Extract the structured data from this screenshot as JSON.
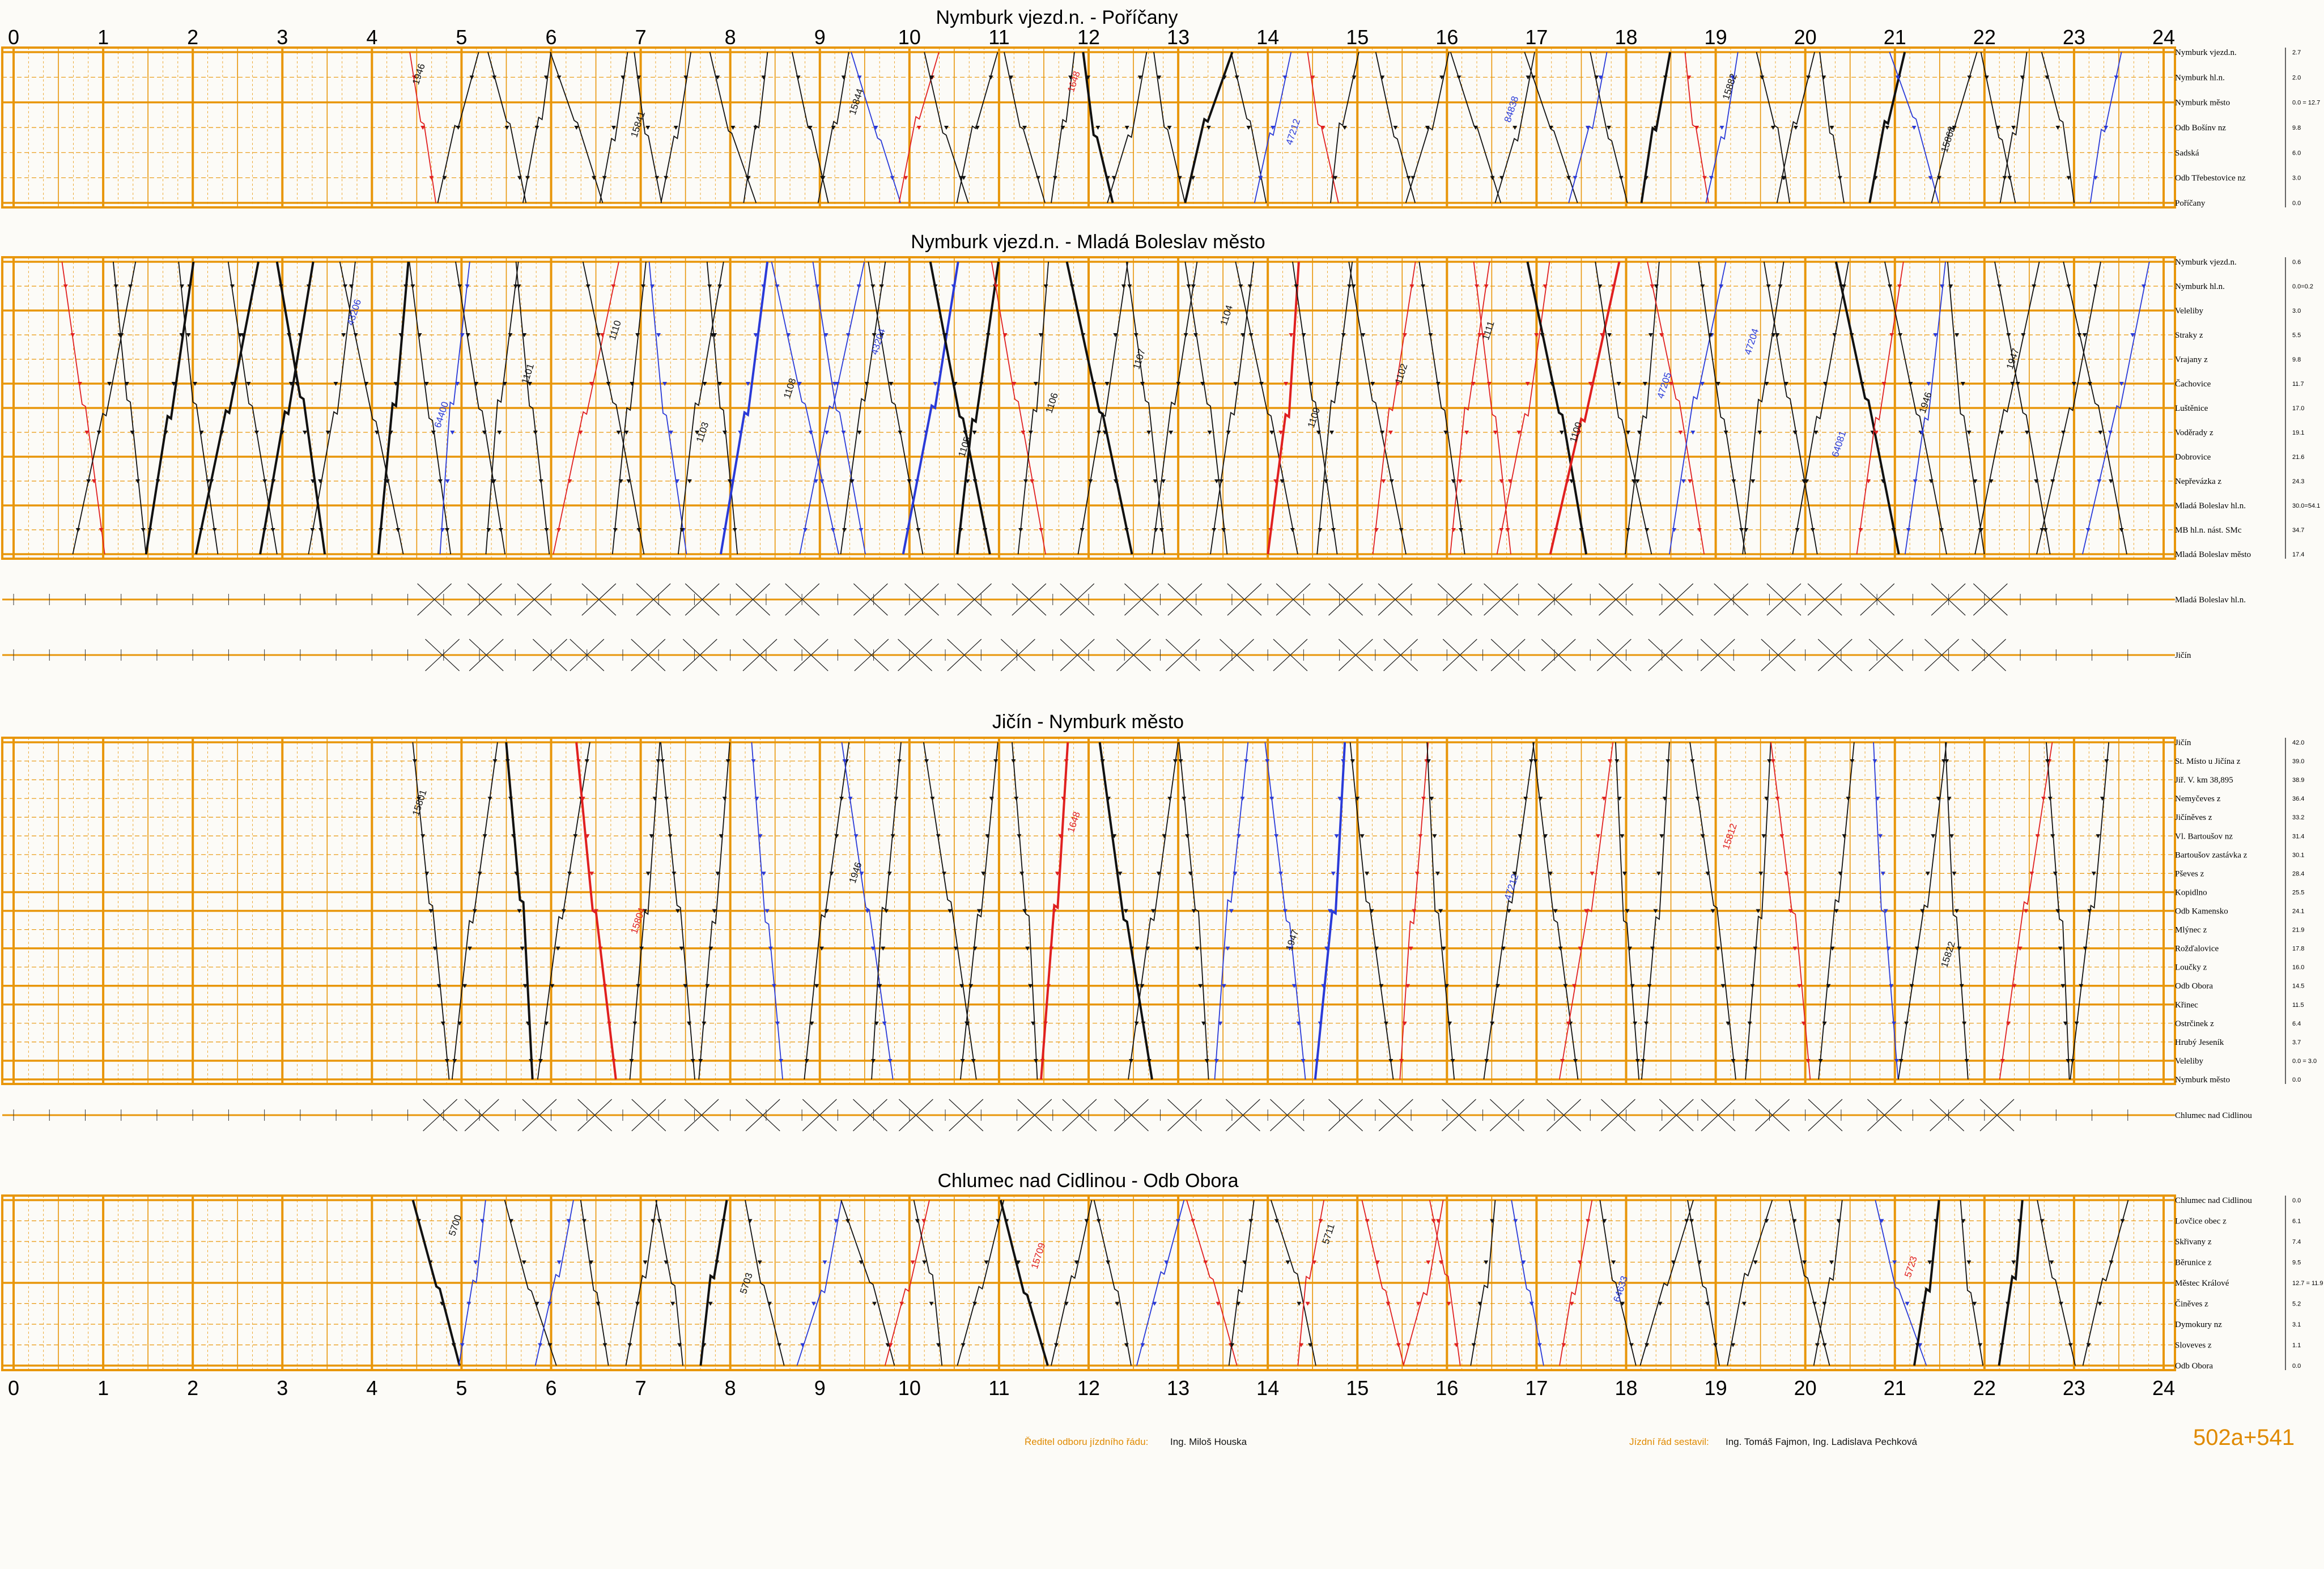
{
  "hours": [
    "0",
    "1",
    "2",
    "3",
    "4",
    "5",
    "6",
    "7",
    "8",
    "9",
    "10",
    "11",
    "12",
    "13",
    "14",
    "15",
    "16",
    "17",
    "18",
    "19",
    "20",
    "21",
    "22",
    "23",
    "24"
  ],
  "colors": {
    "grid": "#e8960a",
    "regional": "#111111",
    "fast": "#e02020",
    "freight": "#2a3ad8",
    "label": "#e08a00"
  },
  "sections": [
    {
      "id": "s1",
      "title": "Nymburk vjezd.n. - Poříčany",
      "stations": [
        {
          "name": "Nymburk vjezd.n.",
          "km": "2.7",
          "major": true
        },
        {
          "name": "Nymburk hl.n.",
          "km": "2.0",
          "major": false
        },
        {
          "name": "Nymburk město",
          "km": "0.0 = 12.7",
          "major": true
        },
        {
          "name": "Odb Bošínv nz",
          "km": "9.8",
          "major": false
        },
        {
          "name": "Sadská",
          "km": "6.0",
          "major": false
        },
        {
          "name": "Odb Třebestovice nz",
          "km": "3.0",
          "major": false
        },
        {
          "name": "Poříčany",
          "km": "0.0",
          "major": true
        }
      ],
      "trains": [
        {
          "num": "1946",
          "kind": "regional"
        },
        {
          "num": "15841",
          "kind": "regional"
        },
        {
          "num": "15844",
          "kind": "regional"
        },
        {
          "num": "1648",
          "kind": "fast"
        },
        {
          "num": "47212",
          "kind": "freight"
        },
        {
          "num": "84838",
          "kind": "freight"
        },
        {
          "num": "15882",
          "kind": "regional"
        },
        {
          "num": "15868",
          "kind": "regional"
        }
      ]
    },
    {
      "id": "s2",
      "title": "Nymburk vjezd.n. - Mladá Boleslav město",
      "stations": [
        {
          "name": "Nymburk vjezd.n.",
          "km": "0.6",
          "major": true
        },
        {
          "name": "Nymburk hl.n.",
          "km": "0.0=0.2",
          "major": false
        },
        {
          "name": "Veleliby",
          "km": "3.0",
          "major": true
        },
        {
          "name": "Straky z",
          "km": "5.5",
          "major": false
        },
        {
          "name": "Vrajany z",
          "km": "9.8",
          "major": false
        },
        {
          "name": "Čachovice",
          "km": "11.7",
          "major": true
        },
        {
          "name": "Luštěnice",
          "km": "17.0",
          "major": true
        },
        {
          "name": "Voděrady z",
          "km": "19.1",
          "major": false
        },
        {
          "name": "Dobrovice",
          "km": "21.6",
          "major": true
        },
        {
          "name": "Nepřevázka z",
          "km": "24.3",
          "major": false
        },
        {
          "name": "Mladá Boleslav hl.n.",
          "km": "30.0=54.1",
          "major": true
        },
        {
          "name": "MB hl.n. nást. SMc",
          "km": "34.7",
          "major": false
        },
        {
          "name": "Mladá Boleslav město",
          "km": "17.4",
          "major": true
        }
      ],
      "trains": [
        {
          "num": "43206",
          "kind": "freight"
        },
        {
          "num": "64400",
          "kind": "freight"
        },
        {
          "num": "1101",
          "kind": "regional"
        },
        {
          "num": "1110",
          "kind": "regional"
        },
        {
          "num": "1103",
          "kind": "regional"
        },
        {
          "num": "1108",
          "kind": "regional"
        },
        {
          "num": "43204",
          "kind": "freight"
        },
        {
          "num": "1105",
          "kind": "regional"
        },
        {
          "num": "1106",
          "kind": "regional"
        },
        {
          "num": "1107",
          "kind": "regional"
        },
        {
          "num": "1104",
          "kind": "regional"
        },
        {
          "num": "1109",
          "kind": "regional"
        },
        {
          "num": "1102",
          "kind": "regional"
        },
        {
          "num": "1111",
          "kind": "regional"
        },
        {
          "num": "1100",
          "kind": "regional"
        },
        {
          "num": "47205",
          "kind": "freight"
        },
        {
          "num": "47204",
          "kind": "freight"
        },
        {
          "num": "64081",
          "kind": "freight"
        },
        {
          "num": "1946",
          "kind": "regional"
        },
        {
          "num": "1947",
          "kind": "regional"
        }
      ],
      "shunting": [
        "Mladá Boleslav hl.n.",
        "Jičín"
      ]
    },
    {
      "id": "s3",
      "title": "Jičín - Nymburk město",
      "stations": [
        {
          "name": "Jičín",
          "km": "42.0",
          "major": true
        },
        {
          "name": "St. Místo u Jičína z",
          "km": "39.0",
          "major": false
        },
        {
          "name": "Jiř. V. km 38,895",
          "km": "38.9",
          "major": false
        },
        {
          "name": "Nemyčeves z",
          "km": "36.4",
          "major": false
        },
        {
          "name": "Jičíněves z",
          "km": "33.2",
          "major": false
        },
        {
          "name": "Vl. Bartoušov nz",
          "km": "31.4",
          "major": false
        },
        {
          "name": "Bartoušov zastávka z",
          "km": "30.1",
          "major": false
        },
        {
          "name": "Pševes z",
          "km": "28.4",
          "major": false
        },
        {
          "name": "Kopidlno",
          "km": "25.5",
          "major": true
        },
        {
          "name": "Odb Kamensko",
          "km": "24.1",
          "major": true
        },
        {
          "name": "Mlýnec z",
          "km": "21.9",
          "major": false
        },
        {
          "name": "Rožďalovice",
          "km": "17.8",
          "major": true
        },
        {
          "name": "Loučky z",
          "km": "16.0",
          "major": false
        },
        {
          "name": "Odb Obora",
          "km": "14.5",
          "major": true
        },
        {
          "name": "Křinec",
          "km": "11.5",
          "major": true
        },
        {
          "name": "Ostrčinek z",
          "km": "6.4",
          "major": false
        },
        {
          "name": "Hrubý Jeseník",
          "km": "3.7",
          "major": false
        },
        {
          "name": "Veleliby",
          "km": "0.0 = 3.0",
          "major": true
        },
        {
          "name": "Nymburk město",
          "km": "0.0",
          "major": true
        }
      ],
      "trains": [
        {
          "num": "15801",
          "kind": "regional"
        },
        {
          "num": "15804",
          "kind": "fast"
        },
        {
          "num": "1946",
          "kind": "regional"
        },
        {
          "num": "1648",
          "kind": "fast"
        },
        {
          "num": "1947",
          "kind": "regional"
        },
        {
          "num": "47212",
          "kind": "freight"
        },
        {
          "num": "15812",
          "kind": "fast"
        },
        {
          "num": "15822",
          "kind": "regional"
        }
      ],
      "shunting": [
        "Chlumec nad Cidlinou"
      ]
    },
    {
      "id": "s4",
      "title": "Chlumec nad Cidlinou - Odb Obora",
      "stations": [
        {
          "name": "Chlumec nad Cidlinou",
          "km": "0.0",
          "major": true
        },
        {
          "name": "Lovčice obec z",
          "km": "6.1",
          "major": false
        },
        {
          "name": "Skřivany z",
          "km": "7.4",
          "major": false
        },
        {
          "name": "Běrunice z",
          "km": "9.5",
          "major": false
        },
        {
          "name": "Městec Králové",
          "km": "12.7 = 11.9",
          "major": true
        },
        {
          "name": "Činěves z",
          "km": "5.2",
          "major": false
        },
        {
          "name": "Dymokury nz",
          "km": "3.1",
          "major": false
        },
        {
          "name": "Sloveves z",
          "km": "1.1",
          "major": false
        },
        {
          "name": "Odb Obora",
          "km": "0.0",
          "major": true
        }
      ],
      "trains": [
        {
          "num": "5700",
          "kind": "regional"
        },
        {
          "num": "5703",
          "kind": "regional"
        },
        {
          "num": "15709",
          "kind": "fast"
        },
        {
          "num": "5711",
          "kind": "regional"
        },
        {
          "num": "64633",
          "kind": "freight"
        },
        {
          "num": "5723",
          "kind": "fast"
        }
      ]
    }
  ],
  "footer": {
    "director_caption": "Ředitel odboru jízdního řádu:",
    "director_name": "Ing. Miloš Houska",
    "compiled_caption": "Jízdní řád sestavil:",
    "compiled_names": "Ing. Tomáš Fajmon, Ing. Ladislava Pechková",
    "sheet_code": "502a+541"
  }
}
